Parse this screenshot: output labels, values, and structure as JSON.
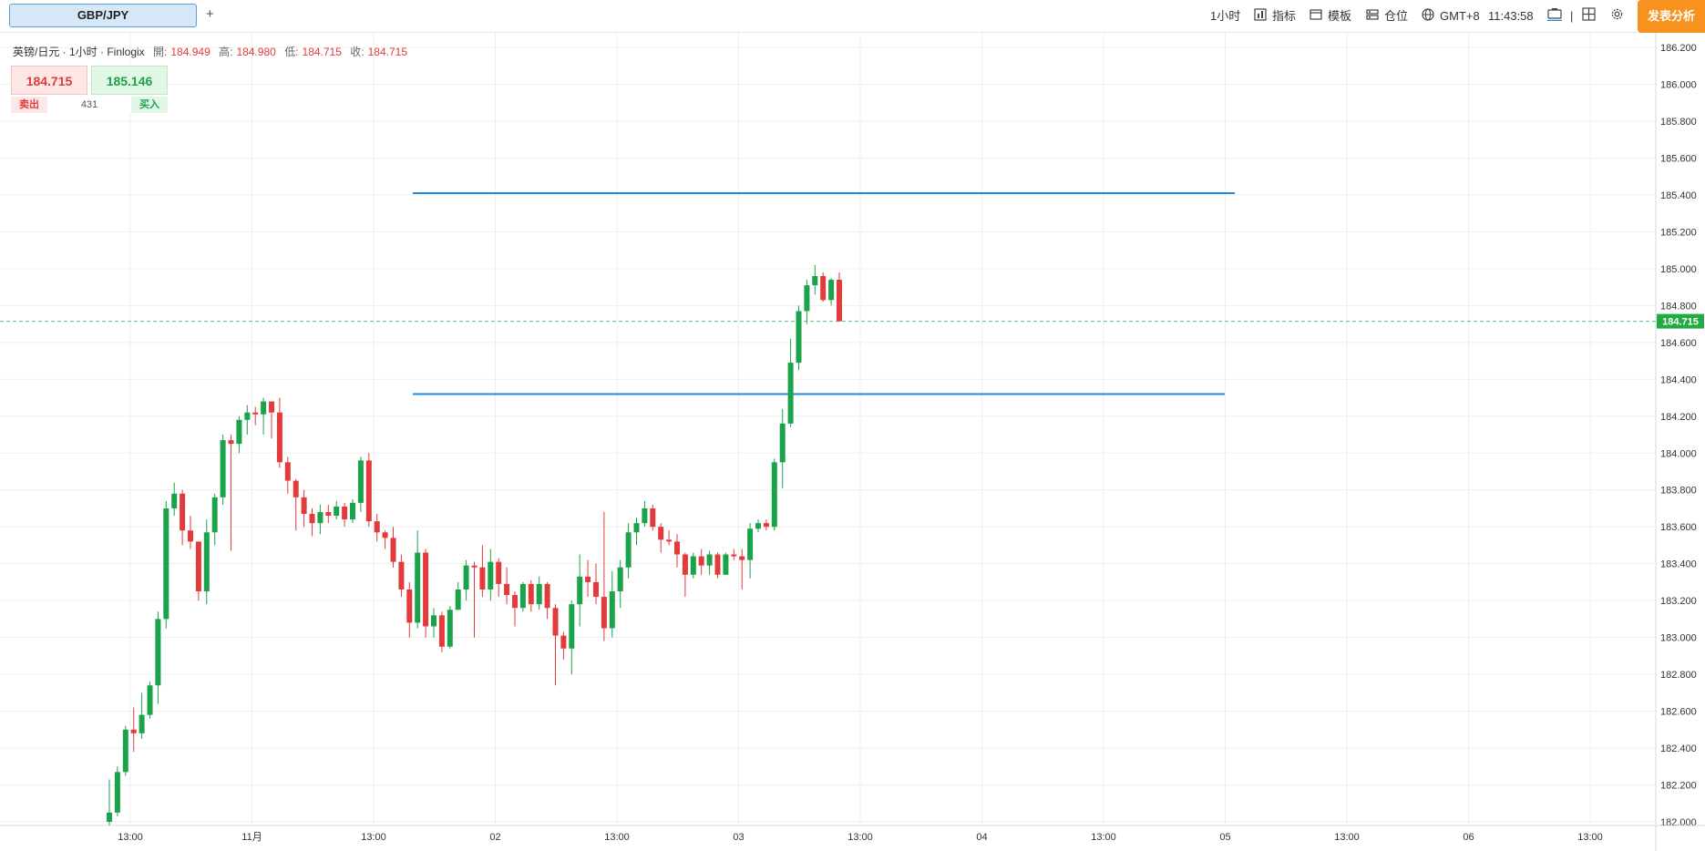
{
  "toolbar": {
    "tab_label": "GBP/JPY",
    "add_tab": "+",
    "timeframe": "1小时",
    "indicators": "指标",
    "templates": "模板",
    "positions": "仓位",
    "timezone": "GMT+8",
    "clock": "11:43:58",
    "publish": "发表分析",
    "icons": [
      "bar-chart-icon",
      "template-icon",
      "positions-icon",
      "globe-icon",
      "screenshot-icon",
      "layout-grid-icon",
      "gear-icon"
    ]
  },
  "legend": {
    "symbol": "英镑/日元 · 1小时 · Finlogix",
    "open_label": "開:",
    "open": "184.949",
    "high_label": "高:",
    "high": "184.980",
    "low_label": "低:",
    "low": "184.715",
    "close_label": "收:",
    "close": "184.715"
  },
  "quote": {
    "sell_price": "184.715",
    "buy_price": "185.146",
    "sell_label": "卖出",
    "buy_label": "买入",
    "spread": "431"
  },
  "chart_data": {
    "type": "candlestick",
    "price_axis": [
      "186.200",
      "186.000",
      "185.800",
      "185.600",
      "185.400",
      "185.200",
      "185.000",
      "184.800",
      "184.600",
      "184.400",
      "184.200",
      "184.000",
      "183.800",
      "183.600",
      "183.400",
      "183.200",
      "183.000",
      "182.800",
      "182.600",
      "182.400",
      "182.200",
      "182.000"
    ],
    "ylim": [
      181.98,
      186.24
    ],
    "time_axis": [
      "13:00",
      "11月",
      "13:00",
      "02",
      "13:00",
      "03",
      "13:00",
      "04",
      "13:00",
      "05",
      "13:00",
      "06",
      "13:00"
    ],
    "current_price": "184.715",
    "horizontal_lines": [
      185.41,
      184.32
    ],
    "colors": {
      "up": "#1aa34a",
      "down": "#e23b3b",
      "line": "#1e88e5",
      "current": "#22aa44"
    },
    "candles": [
      [
        182.0,
        182.05,
        182.23,
        181.98
      ],
      [
        182.05,
        182.27,
        182.3,
        182.03
      ],
      [
        182.27,
        182.5,
        182.52,
        182.25
      ],
      [
        182.5,
        182.48,
        182.62,
        182.38
      ],
      [
        182.48,
        182.58,
        182.7,
        182.45
      ],
      [
        182.58,
        182.74,
        182.76,
        182.56
      ],
      [
        182.74,
        183.1,
        183.14,
        182.64
      ],
      [
        183.1,
        183.7,
        183.74,
        183.05
      ],
      [
        183.7,
        183.78,
        183.84,
        183.66
      ],
      [
        183.78,
        183.58,
        183.8,
        183.5
      ],
      [
        183.58,
        183.52,
        183.66,
        183.48
      ],
      [
        183.52,
        183.25,
        183.52,
        183.2
      ],
      [
        183.25,
        183.57,
        183.64,
        183.18
      ],
      [
        183.57,
        183.76,
        183.78,
        183.5
      ],
      [
        183.76,
        184.07,
        184.1,
        183.72
      ],
      [
        184.07,
        184.05,
        184.1,
        183.47
      ],
      [
        184.05,
        184.18,
        184.2,
        184.0
      ],
      [
        184.18,
        184.22,
        184.26,
        184.1
      ],
      [
        184.22,
        184.21,
        184.25,
        184.15
      ],
      [
        184.21,
        184.28,
        184.3,
        184.1
      ],
      [
        184.28,
        184.22,
        184.26,
        184.08
      ],
      [
        184.22,
        183.95,
        184.3,
        183.92
      ],
      [
        183.95,
        183.85,
        183.98,
        183.78
      ],
      [
        183.85,
        183.76,
        183.86,
        183.58
      ],
      [
        183.76,
        183.67,
        183.8,
        183.6
      ],
      [
        183.67,
        183.62,
        183.7,
        183.55
      ],
      [
        183.62,
        183.68,
        183.72,
        183.56
      ],
      [
        183.68,
        183.66,
        183.72,
        183.62
      ],
      [
        183.66,
        183.71,
        183.74,
        183.64
      ],
      [
        183.71,
        183.64,
        183.73,
        183.6
      ],
      [
        183.64,
        183.73,
        183.75,
        183.62
      ],
      [
        183.73,
        183.96,
        183.98,
        183.68
      ],
      [
        183.96,
        183.63,
        184.0,
        183.6
      ],
      [
        183.63,
        183.57,
        183.67,
        183.52
      ],
      [
        183.57,
        183.54,
        183.58,
        183.48
      ],
      [
        183.54,
        183.41,
        183.6,
        183.38
      ],
      [
        183.41,
        183.26,
        183.45,
        183.22
      ],
      [
        183.26,
        183.08,
        183.3,
        183.0
      ],
      [
        183.08,
        183.46,
        183.58,
        183.05
      ],
      [
        183.46,
        183.06,
        183.48,
        183.0
      ],
      [
        183.06,
        183.12,
        183.16,
        183.0
      ],
      [
        183.12,
        182.95,
        183.14,
        182.92
      ],
      [
        182.95,
        183.15,
        183.17,
        182.94
      ],
      [
        183.15,
        183.26,
        183.3,
        183.15
      ],
      [
        183.26,
        183.39,
        183.42,
        183.2
      ],
      [
        183.39,
        183.38,
        183.41,
        183.0
      ],
      [
        183.38,
        183.26,
        183.5,
        183.22
      ],
      [
        183.26,
        183.41,
        183.48,
        183.2
      ],
      [
        183.41,
        183.29,
        183.43,
        183.22
      ],
      [
        183.29,
        183.23,
        183.38,
        183.18
      ],
      [
        183.23,
        183.16,
        183.25,
        183.06
      ],
      [
        183.16,
        183.29,
        183.3,
        183.14
      ],
      [
        183.29,
        183.18,
        183.31,
        183.14
      ],
      [
        183.18,
        183.29,
        183.33,
        183.15
      ],
      [
        183.29,
        183.16,
        183.3,
        183.1
      ],
      [
        183.16,
        183.01,
        183.18,
        182.74
      ],
      [
        183.01,
        182.94,
        183.03,
        182.88
      ],
      [
        182.94,
        183.18,
        183.2,
        182.8
      ],
      [
        183.18,
        183.33,
        183.45,
        183.06
      ],
      [
        183.33,
        183.3,
        183.42,
        183.22
      ],
      [
        183.3,
        183.22,
        183.4,
        183.18
      ],
      [
        183.22,
        183.05,
        183.68,
        182.98
      ],
      [
        183.05,
        183.25,
        183.36,
        183.0
      ],
      [
        183.25,
        183.38,
        183.42,
        183.16
      ],
      [
        183.38,
        183.57,
        183.62,
        183.32
      ],
      [
        183.57,
        183.62,
        183.65,
        183.5
      ],
      [
        183.62,
        183.7,
        183.74,
        183.6
      ],
      [
        183.7,
        183.6,
        183.72,
        183.58
      ],
      [
        183.6,
        183.53,
        183.62,
        183.46
      ],
      [
        183.53,
        183.52,
        183.58,
        183.5
      ],
      [
        183.52,
        183.45,
        183.56,
        183.38
      ],
      [
        183.45,
        183.34,
        183.46,
        183.22
      ],
      [
        183.34,
        183.44,
        183.46,
        183.32
      ],
      [
        183.44,
        183.39,
        183.48,
        183.34
      ],
      [
        183.39,
        183.45,
        183.47,
        183.34
      ],
      [
        183.45,
        183.34,
        183.46,
        183.32
      ],
      [
        183.34,
        183.45,
        183.46,
        183.34
      ],
      [
        183.45,
        183.44,
        183.48,
        183.42
      ],
      [
        183.44,
        183.42,
        183.48,
        183.26
      ],
      [
        183.42,
        183.59,
        183.62,
        183.32
      ],
      [
        183.59,
        183.62,
        183.64,
        183.57
      ],
      [
        183.62,
        183.6,
        183.64,
        183.58
      ],
      [
        183.6,
        183.95,
        183.97,
        183.58
      ],
      [
        183.95,
        184.16,
        184.24,
        183.81
      ],
      [
        184.16,
        184.49,
        184.62,
        184.14
      ],
      [
        184.49,
        184.77,
        184.8,
        184.45
      ],
      [
        184.77,
        184.91,
        184.94,
        184.7
      ],
      [
        184.91,
        184.96,
        185.02,
        184.86
      ],
      [
        184.96,
        184.83,
        184.98,
        184.82
      ],
      [
        184.83,
        184.94,
        184.95,
        184.8
      ],
      [
        184.94,
        184.715,
        184.98,
        184.715
      ]
    ]
  }
}
